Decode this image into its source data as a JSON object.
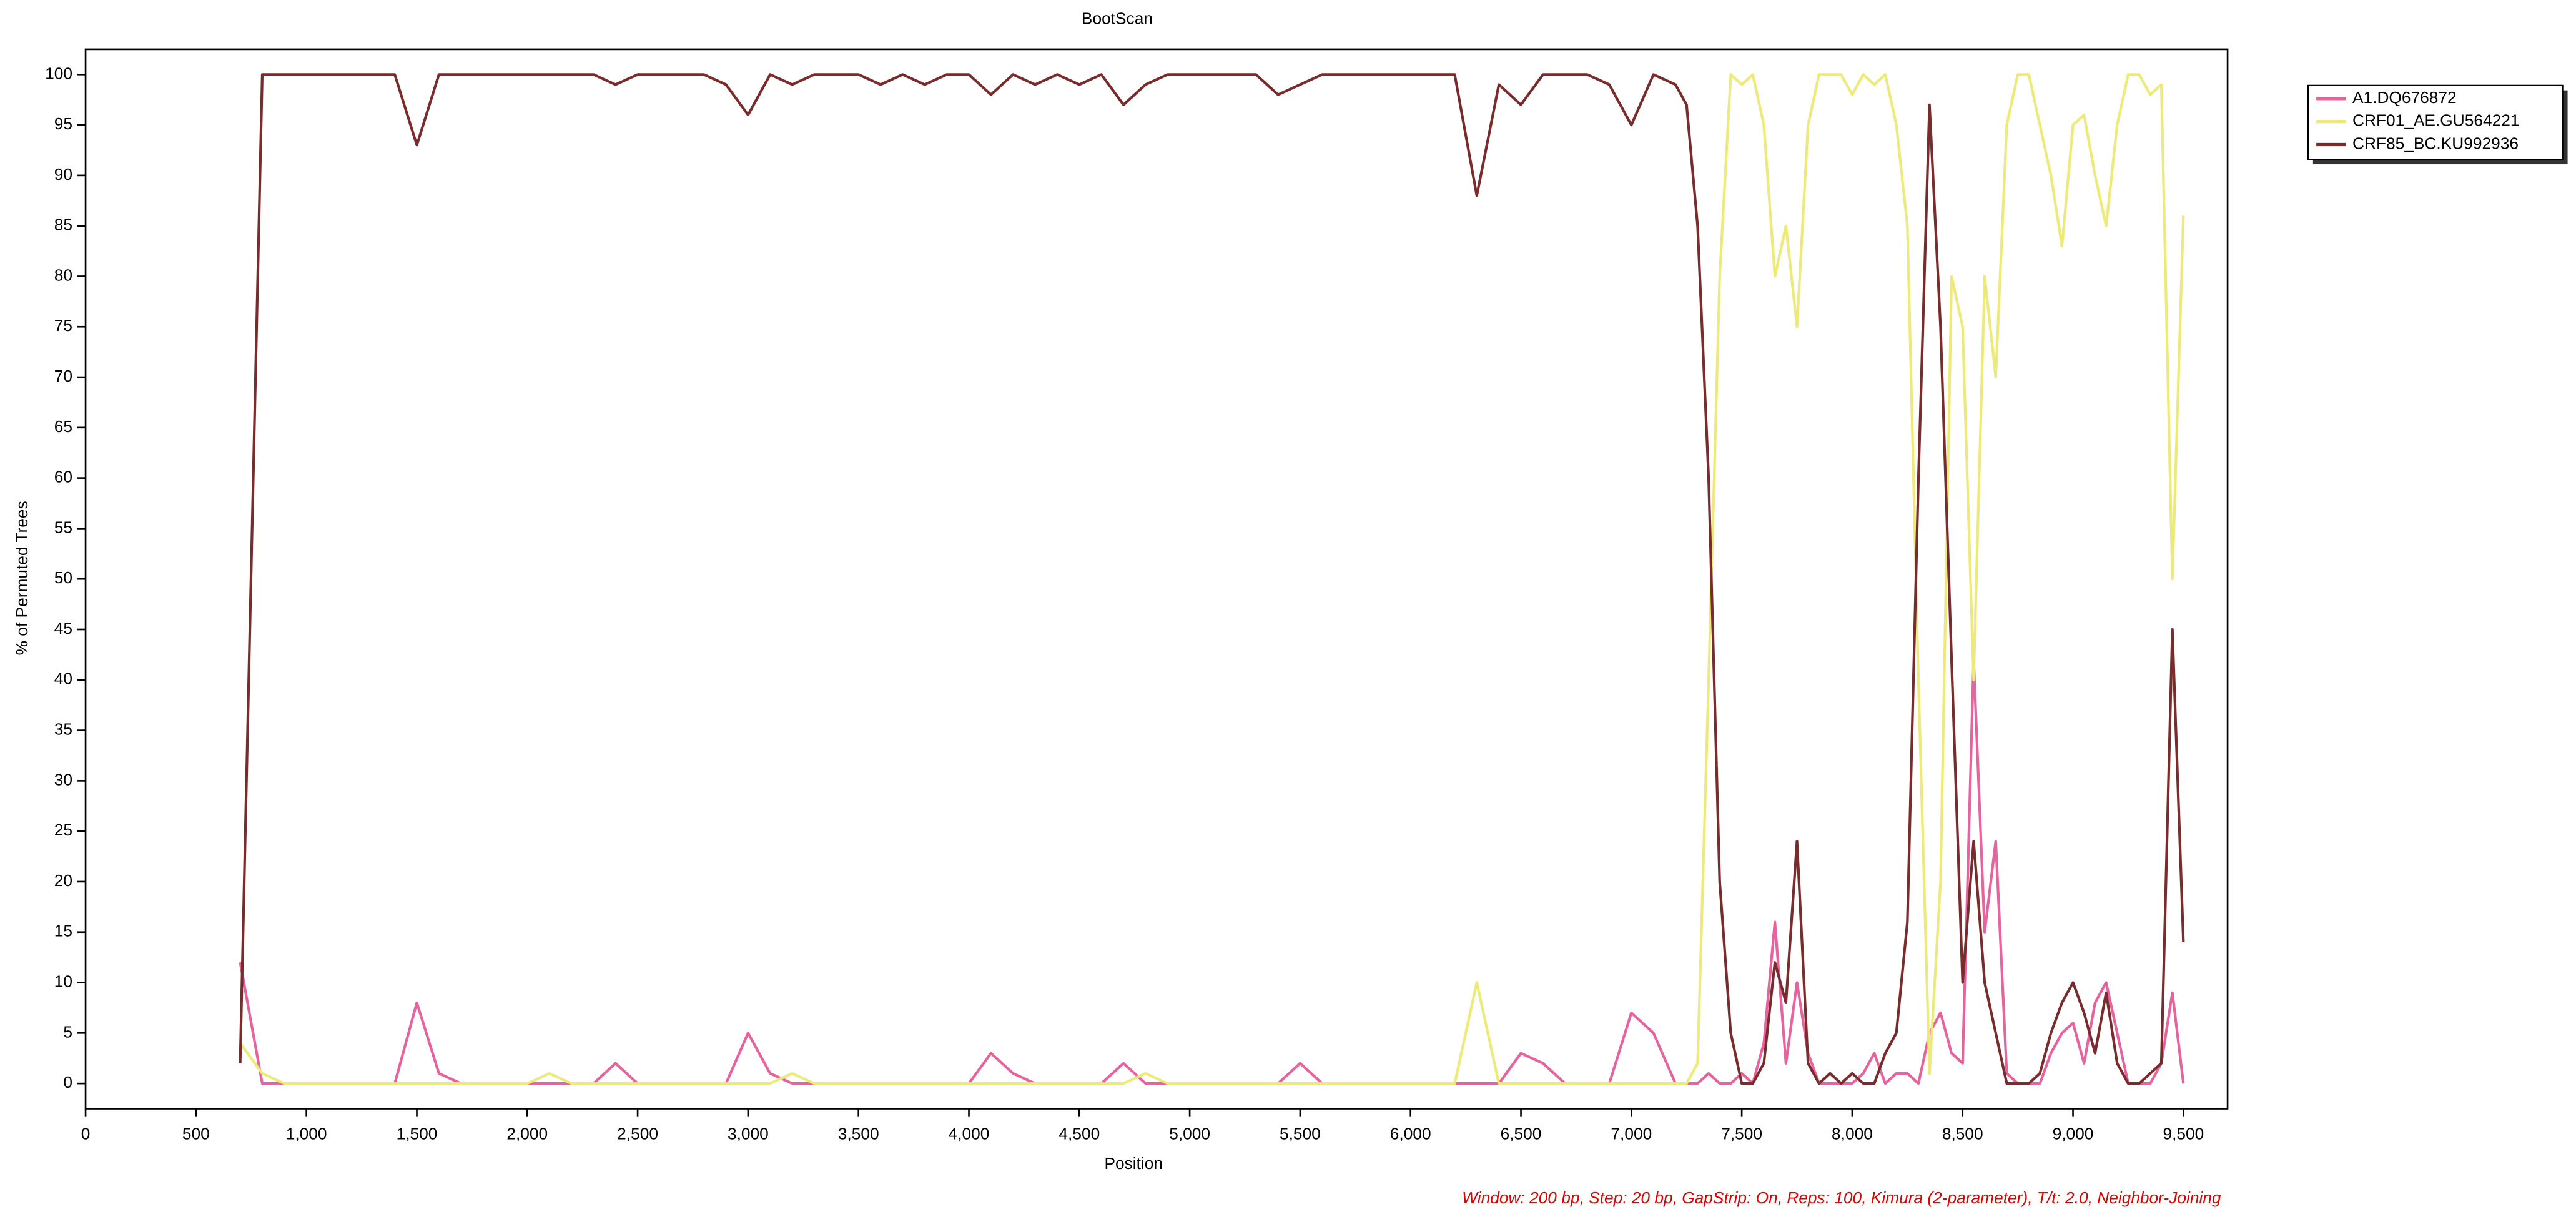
{
  "chart_data": {
    "type": "line",
    "title": "BootScan",
    "x_label": "Position",
    "y_label": "% of Permuted Trees",
    "note": "Window: 200 bp, Step: 20 bp, GapStrip: On, Reps: 100, Kimura (2-parameter), T/t: 2.0, Neighbor-Joining",
    "x": [
      700,
      800,
      900,
      1000,
      1100,
      1200,
      1300,
      1400,
      1500,
      1600,
      1700,
      1800,
      1900,
      2000,
      2100,
      2200,
      2300,
      2400,
      2500,
      2600,
      2700,
      2800,
      2900,
      3000,
      3100,
      3200,
      3300,
      3400,
      3500,
      3600,
      3700,
      3800,
      3900,
      4000,
      4100,
      4200,
      4300,
      4400,
      4500,
      4600,
      4700,
      4800,
      4900,
      5000,
      5100,
      5200,
      5300,
      5400,
      5500,
      5600,
      5700,
      5800,
      5900,
      6000,
      6100,
      6200,
      6300,
      6400,
      6500,
      6600,
      6700,
      6800,
      6900,
      7000,
      7100,
      7200,
      7250,
      7300,
      7350,
      7400,
      7450,
      7500,
      7550,
      7600,
      7650,
      7700,
      7750,
      7800,
      7850,
      7900,
      7950,
      8000,
      8050,
      8100,
      8150,
      8200,
      8250,
      8300,
      8350,
      8400,
      8450,
      8500,
      8550,
      8600,
      8650,
      8700,
      8750,
      8800,
      8850,
      8900,
      8950,
      9000,
      9050,
      9100,
      9150,
      9200,
      9250,
      9300,
      9350,
      9400,
      9450,
      9500
    ],
    "series": [
      {
        "name": "A1.DQ676872",
        "color": "#e8639e",
        "values": [
          12,
          0,
          0,
          0,
          0,
          0,
          0,
          0,
          8,
          1,
          0,
          0,
          0,
          0,
          0,
          0,
          0,
          2,
          0,
          0,
          0,
          0,
          0,
          5,
          1,
          0,
          0,
          0,
          0,
          0,
          0,
          0,
          0,
          0,
          3,
          1,
          0,
          0,
          0,
          0,
          2,
          0,
          0,
          0,
          0,
          0,
          0,
          0,
          2,
          0,
          0,
          0,
          0,
          0,
          0,
          0,
          0,
          0,
          3,
          2,
          0,
          0,
          0,
          7,
          5,
          0,
          0,
          0,
          1,
          0,
          0,
          1,
          0,
          4,
          16,
          2,
          10,
          3,
          0,
          0,
          0,
          0,
          1,
          3,
          0,
          1,
          1,
          0,
          5,
          7,
          3,
          2,
          42,
          15,
          24,
          1,
          0,
          0,
          0,
          3,
          5,
          6,
          2,
          8,
          10,
          5,
          0,
          0,
          0,
          2,
          9,
          0
        ]
      },
      {
        "name": "CRF01_AE.GU564221",
        "color": "#eeea78",
        "values": [
          4,
          1,
          0,
          0,
          0,
          0,
          0,
          0,
          0,
          0,
          0,
          0,
          0,
          0,
          1,
          0,
          0,
          0,
          0,
          0,
          0,
          0,
          0,
          0,
          0,
          1,
          0,
          0,
          0,
          0,
          0,
          0,
          0,
          0,
          0,
          0,
          0,
          0,
          0,
          0,
          0,
          1,
          0,
          0,
          0,
          0,
          0,
          0,
          0,
          0,
          0,
          0,
          0,
          0,
          0,
          0,
          10,
          0,
          0,
          0,
          0,
          0,
          0,
          0,
          0,
          0,
          0,
          2,
          40,
          80,
          100,
          99,
          100,
          95,
          80,
          85,
          75,
          95,
          100,
          100,
          100,
          98,
          100,
          99,
          100,
          95,
          85,
          40,
          1,
          20,
          80,
          75,
          40,
          80,
          70,
          95,
          100,
          100,
          95,
          90,
          83,
          95,
          96,
          90,
          85,
          95,
          100,
          100,
          98,
          99,
          50,
          86
        ]
      },
      {
        "name": "CRF85_BC.KU992936",
        "color": "#7a2c2c",
        "values": [
          2,
          100,
          100,
          100,
          100,
          100,
          100,
          100,
          93,
          100,
          100,
          100,
          100,
          100,
          100,
          100,
          100,
          99,
          100,
          100,
          100,
          100,
          99,
          96,
          100,
          99,
          100,
          100,
          100,
          99,
          100,
          99,
          100,
          100,
          98,
          100,
          99,
          100,
          99,
          100,
          97,
          99,
          100,
          100,
          100,
          100,
          100,
          98,
          99,
          100,
          100,
          100,
          100,
          100,
          100,
          100,
          88,
          99,
          97,
          100,
          100,
          100,
          99,
          95,
          100,
          99,
          97,
          85,
          60,
          20,
          5,
          0,
          0,
          2,
          12,
          8,
          24,
          2,
          0,
          1,
          0,
          1,
          0,
          0,
          3,
          5,
          16,
          60,
          97,
          75,
          42,
          10,
          24,
          10,
          5,
          0,
          0,
          0,
          1,
          5,
          8,
          10,
          7,
          3,
          9,
          2,
          0,
          0,
          1,
          2,
          45,
          14
        ]
      }
    ],
    "xlim": [
      0,
      9700
    ],
    "ylim": [
      -2.5,
      102.5
    ],
    "xticks": [
      0,
      500,
      {
        "value": 1000,
        "label": "1,000"
      },
      {
        "value": 1500,
        "label": "1,500"
      },
      {
        "value": 2000,
        "label": "2,000"
      },
      {
        "value": 2500,
        "label": "2,500"
      },
      {
        "value": 3000,
        "label": "3,000"
      },
      {
        "value": 3500,
        "label": "3,500"
      },
      {
        "value": 4000,
        "label": "4,000"
      },
      {
        "value": 4500,
        "label": "4,500"
      },
      {
        "value": 5000,
        "label": "5,000"
      },
      {
        "value": 5500,
        "label": "5,500"
      },
      {
        "value": 6000,
        "label": "6,000"
      },
      {
        "value": 6500,
        "label": "6,500"
      },
      {
        "value": 7000,
        "label": "7,000"
      },
      {
        "value": 7500,
        "label": "7,500"
      },
      {
        "value": 8000,
        "label": "8,000"
      },
      {
        "value": 8500,
        "label": "8,500"
      },
      {
        "value": 9000,
        "label": "9,000"
      },
      {
        "value": 9500,
        "label": "9,500"
      }
    ],
    "yticks": [
      0,
      5,
      10,
      15,
      20,
      25,
      30,
      35,
      40,
      45,
      50,
      55,
      60,
      65,
      70,
      75,
      80,
      85,
      90,
      95,
      100
    ],
    "grid": false,
    "legend": "outside-top-right"
  }
}
